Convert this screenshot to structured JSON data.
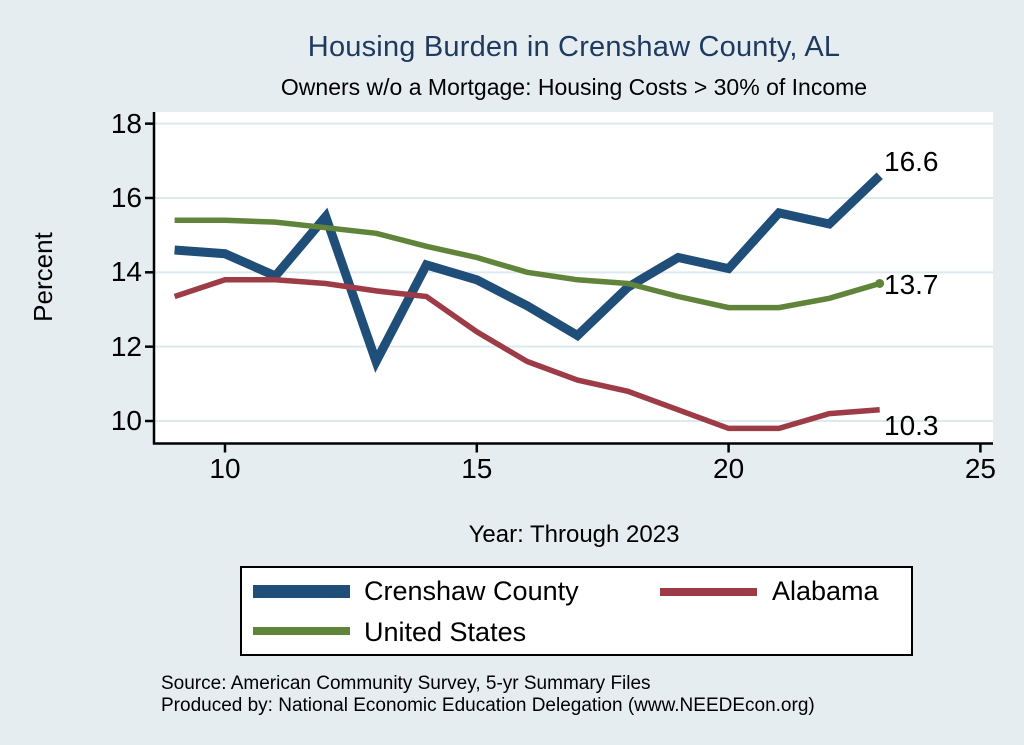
{
  "chart_data": {
    "type": "line",
    "title": "Housing Burden in Crenshaw County, AL",
    "subtitle": "Owners w/o a Mortgage: Housing Costs > 30% of Income",
    "xlabel": "Year: Through 2023",
    "ylabel": "Percent",
    "x": [
      9,
      10,
      11,
      12,
      13,
      14,
      15,
      16,
      17,
      18,
      19,
      20,
      21,
      22,
      23
    ],
    "xticks": [
      10,
      15,
      20,
      25
    ],
    "yticks": [
      10,
      12,
      14,
      16,
      18
    ],
    "xlim": [
      8.6,
      25.25
    ],
    "ylim": [
      9.4,
      18.3
    ],
    "grid": true,
    "legend_position": "bottom",
    "plot_background": "#ffffff",
    "gridline_color": "#dce9ee",
    "axis_color": "#000000",
    "series": [
      {
        "name": "Crenshaw County",
        "color": "#1f4e79",
        "line_width": 9,
        "values": [
          14.6,
          14.5,
          13.9,
          15.5,
          11.6,
          14.2,
          13.8,
          13.1,
          12.3,
          13.6,
          14.4,
          14.1,
          15.6,
          15.3,
          16.6
        ],
        "end_label": "16.6",
        "end_marker": false
      },
      {
        "name": "Alabama",
        "color": "#9d3c46",
        "line_width": 5.5,
        "values": [
          13.35,
          13.8,
          13.8,
          13.7,
          13.5,
          13.35,
          12.4,
          11.6,
          11.1,
          10.8,
          10.3,
          9.8,
          9.8,
          10.2,
          10.3
        ],
        "end_label": "10.3",
        "end_marker": false
      },
      {
        "name": "United States",
        "color": "#60843a",
        "line_width": 5.5,
        "values": [
          15.4,
          15.4,
          15.35,
          15.2,
          15.05,
          14.7,
          14.4,
          14.0,
          13.8,
          13.7,
          13.35,
          13.05,
          13.05,
          13.3,
          13.7
        ],
        "end_label": "13.7",
        "end_marker": true
      }
    ]
  },
  "page": {
    "background": "#e5edf0",
    "title_color": "#1e3a5f"
  },
  "footer": {
    "line1": "Source: American Community Survey, 5-yr Summary Files",
    "line2": "Produced by: National Economic Education Delegation (www.NEEDEcon.org)"
  }
}
